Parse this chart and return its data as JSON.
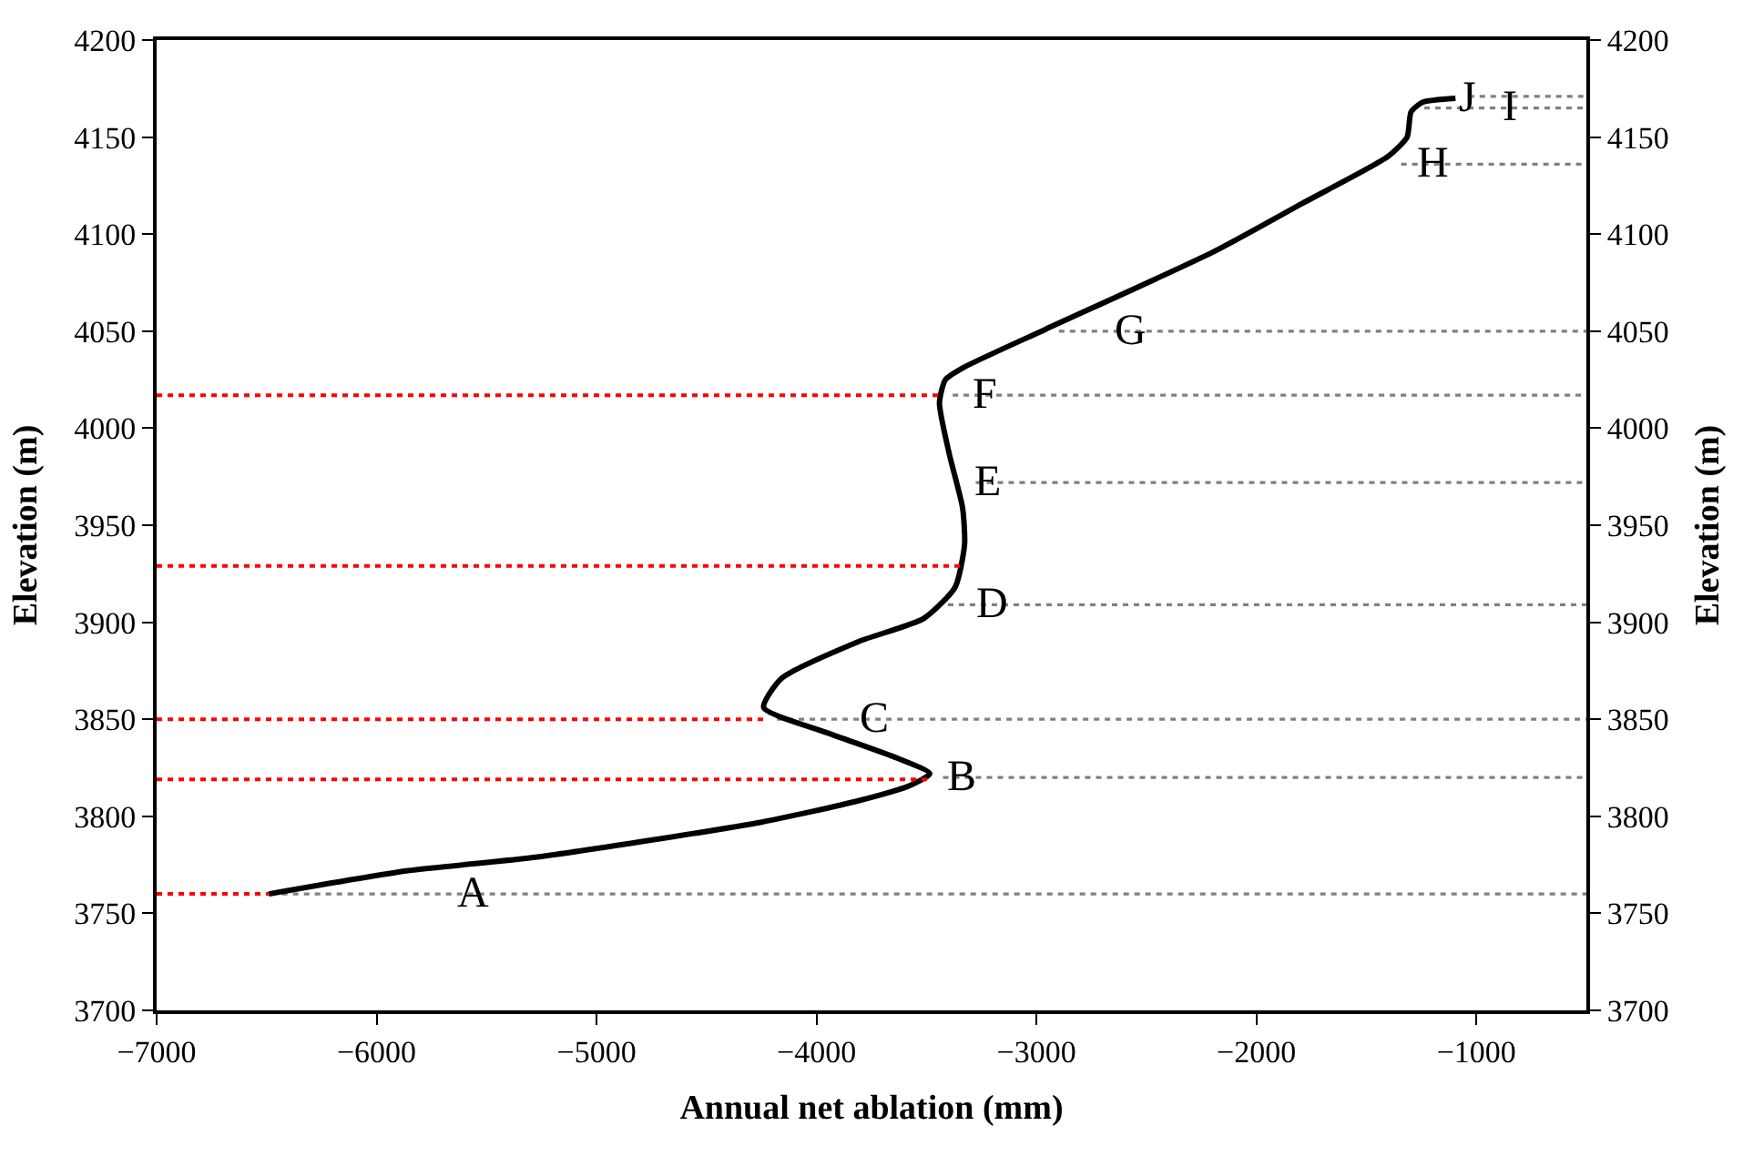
{
  "chart_data": {
    "type": "line",
    "xlabel": "Annual net ablation (mm)",
    "ylabel": "Elevation (m)",
    "y2label": "Elevation (m)",
    "xlim": [
      -7000,
      -500
    ],
    "xticks": [
      {
        "value": -7000,
        "label": "−7000"
      },
      {
        "value": -6000,
        "label": "−6000"
      },
      {
        "value": -5000,
        "label": "−5000"
      },
      {
        "value": -4000,
        "label": "−4000"
      },
      {
        "value": -3000,
        "label": "−3000"
      },
      {
        "value": -2000,
        "label": "−2000"
      },
      {
        "value": -1000,
        "label": "−1000"
      }
    ],
    "ylim": [
      3700,
      4200
    ],
    "yticks": [
      3700,
      3750,
      3800,
      3850,
      3900,
      3950,
      4000,
      4050,
      4100,
      4150,
      4200
    ],
    "y2lim": [
      3700,
      4200
    ],
    "y2ticks": [
      3700,
      3750,
      3800,
      3850,
      3900,
      3950,
      4000,
      4050,
      4100,
      4150,
      4200
    ],
    "grid": false,
    "marker": "none",
    "line_style": "solid",
    "series": [
      {
        "color": "#000000",
        "x": [
          -6490,
          -5858,
          -5269,
          -4250,
          -3810,
          -3573,
          -3485,
          -3634,
          -3950,
          -4240,
          -4160,
          -3810,
          -3512,
          -3370,
          -3327,
          -3336,
          -3397,
          -3441,
          -3414,
          -3336,
          -2958,
          -2193,
          -1789,
          -1402,
          -1315,
          -1297,
          -1244,
          -1095
        ],
        "values": [
          3760,
          3772,
          3779,
          3797,
          3808,
          3816,
          3822,
          3830,
          3843,
          3856,
          3871,
          3890,
          3902,
          3918,
          3940,
          3959,
          3987,
          4013,
          4025,
          4031,
          4051,
          4091,
          4116,
          4140,
          4150,
          4163,
          4168,
          4170
        ]
      },
      {
        "color": "#ff0000",
        "line_style": "dotted",
        "x": [
          -7000,
          -6490
        ],
        "values": [
          3760,
          3760
        ]
      },
      {
        "color": "#ff0000",
        "line_style": "dotted",
        "x": [
          -7000,
          -3485
        ],
        "values": [
          3819,
          3819
        ]
      },
      {
        "color": "#ff0000",
        "line_style": "dotted",
        "x": [
          -7000,
          -4240
        ],
        "values": [
          3850,
          3850
        ]
      },
      {
        "color": "#ff0000",
        "line_style": "dotted",
        "x": [
          -7000,
          -3330
        ],
        "values": [
          3929,
          3929
        ]
      },
      {
        "color": "#ff0000",
        "line_style": "dotted",
        "x": [
          -7000,
          -3441
        ],
        "values": [
          4017,
          4017
        ]
      }
    ],
    "ref_lines": [
      {
        "axis": "y",
        "value": 3760,
        "color": "#808080",
        "line_style": "dotted"
      },
      {
        "axis": "y",
        "value": 3820,
        "color": "#808080",
        "line_style": "dotted"
      },
      {
        "axis": "y",
        "value": 3850,
        "color": "#808080",
        "line_style": "dotted"
      },
      {
        "axis": "y",
        "value": 3909,
        "color": "#808080",
        "line_style": "dotted"
      },
      {
        "axis": "y",
        "value": 3972,
        "color": "#808080",
        "line_style": "dotted"
      },
      {
        "axis": "y",
        "value": 4017,
        "color": "#808080",
        "line_style": "dotted"
      },
      {
        "axis": "y",
        "value": 4050,
        "color": "#808080",
        "line_style": "dotted"
      },
      {
        "axis": "y",
        "value": 4136,
        "color": "#808080",
        "line_style": "dotted"
      },
      {
        "axis": "y",
        "value": 4165,
        "color": "#808080",
        "line_style": "dotted"
      },
      {
        "axis": "y",
        "value": 4171,
        "color": "#808080",
        "line_style": "dotted"
      }
    ],
    "annotations": [
      {
        "text": "A",
        "x": -5650,
        "y": 3760
      },
      {
        "text": "B",
        "x": -3420,
        "y": 3820
      },
      {
        "text": "C",
        "x": -3820,
        "y": 3850
      },
      {
        "text": "D",
        "x": -3290,
        "y": 3909
      },
      {
        "text": "E",
        "x": -3300,
        "y": 3972
      },
      {
        "text": "F",
        "x": -3310,
        "y": 4017
      },
      {
        "text": "G",
        "x": -2660,
        "y": 4050
      },
      {
        "text": "H",
        "x": -1290,
        "y": 4136
      },
      {
        "text": "I",
        "x": -900,
        "y": 4165
      },
      {
        "text": "J",
        "x": -1095,
        "y": 4170
      }
    ]
  }
}
